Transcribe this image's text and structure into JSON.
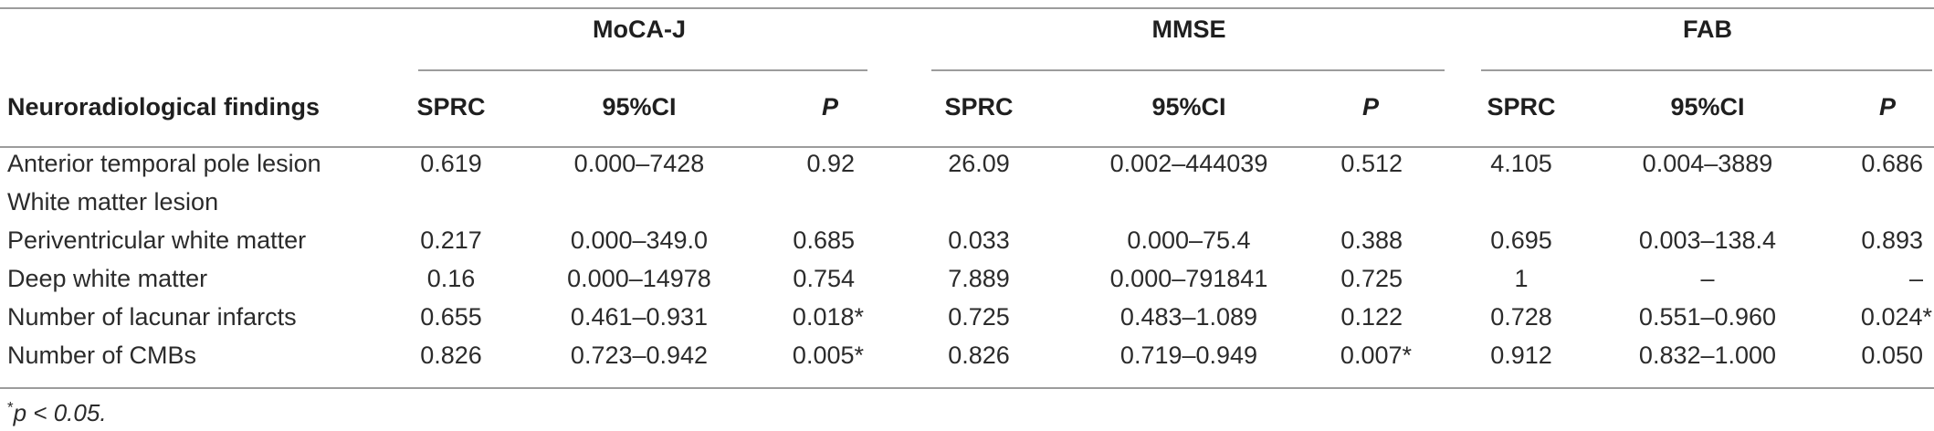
{
  "table": {
    "groups": [
      "MoCA-J",
      "MMSE",
      "FAB"
    ],
    "row_header": "Neuroradiological findings",
    "columns": [
      "SPRC",
      "95%CI",
      "P",
      "SPRC",
      "95%CI",
      "P",
      "SPRC",
      "95%CI",
      "P"
    ],
    "rows": [
      {
        "label": "Anterior temporal pole lesion",
        "cells": [
          "0.619",
          "0.000–7428",
          "0.92",
          "26.09",
          "0.002–444039",
          "0.512",
          "4.105",
          "0.004–3889",
          "0.686"
        ]
      },
      {
        "label": "White matter lesion",
        "cells": [
          "",
          "",
          "",
          "",
          "",
          "",
          "",
          "",
          ""
        ]
      },
      {
        "label": "Periventricular white matter",
        "cells": [
          "0.217",
          "0.000–349.0",
          "0.685",
          "0.033",
          "0.000–75.4",
          "0.388",
          "0.695",
          "0.003–138.4",
          "0.893"
        ]
      },
      {
        "label": "Deep white matter",
        "cells": [
          "0.16",
          "0.000–14978",
          "0.754",
          "7.889",
          "0.000–791841",
          "0.725",
          "1",
          "–",
          "–"
        ]
      },
      {
        "label": "Number of lacunar infarcts",
        "cells": [
          "0.655",
          "0.461–0.931",
          "0.018*",
          "0.725",
          "0.483–1.089",
          "0.122",
          "0.728",
          "0.551–0.960",
          "0.024*"
        ]
      },
      {
        "label": "Number of CMBs",
        "cells": [
          "0.826",
          "0.723–0.942",
          "0.005*",
          "0.826",
          "0.719–0.949",
          "0.007*",
          "0.912",
          "0.832–1.000",
          "0.050"
        ]
      }
    ]
  },
  "footnote": {
    "marker": "*",
    "text": "p < 0.05."
  }
}
